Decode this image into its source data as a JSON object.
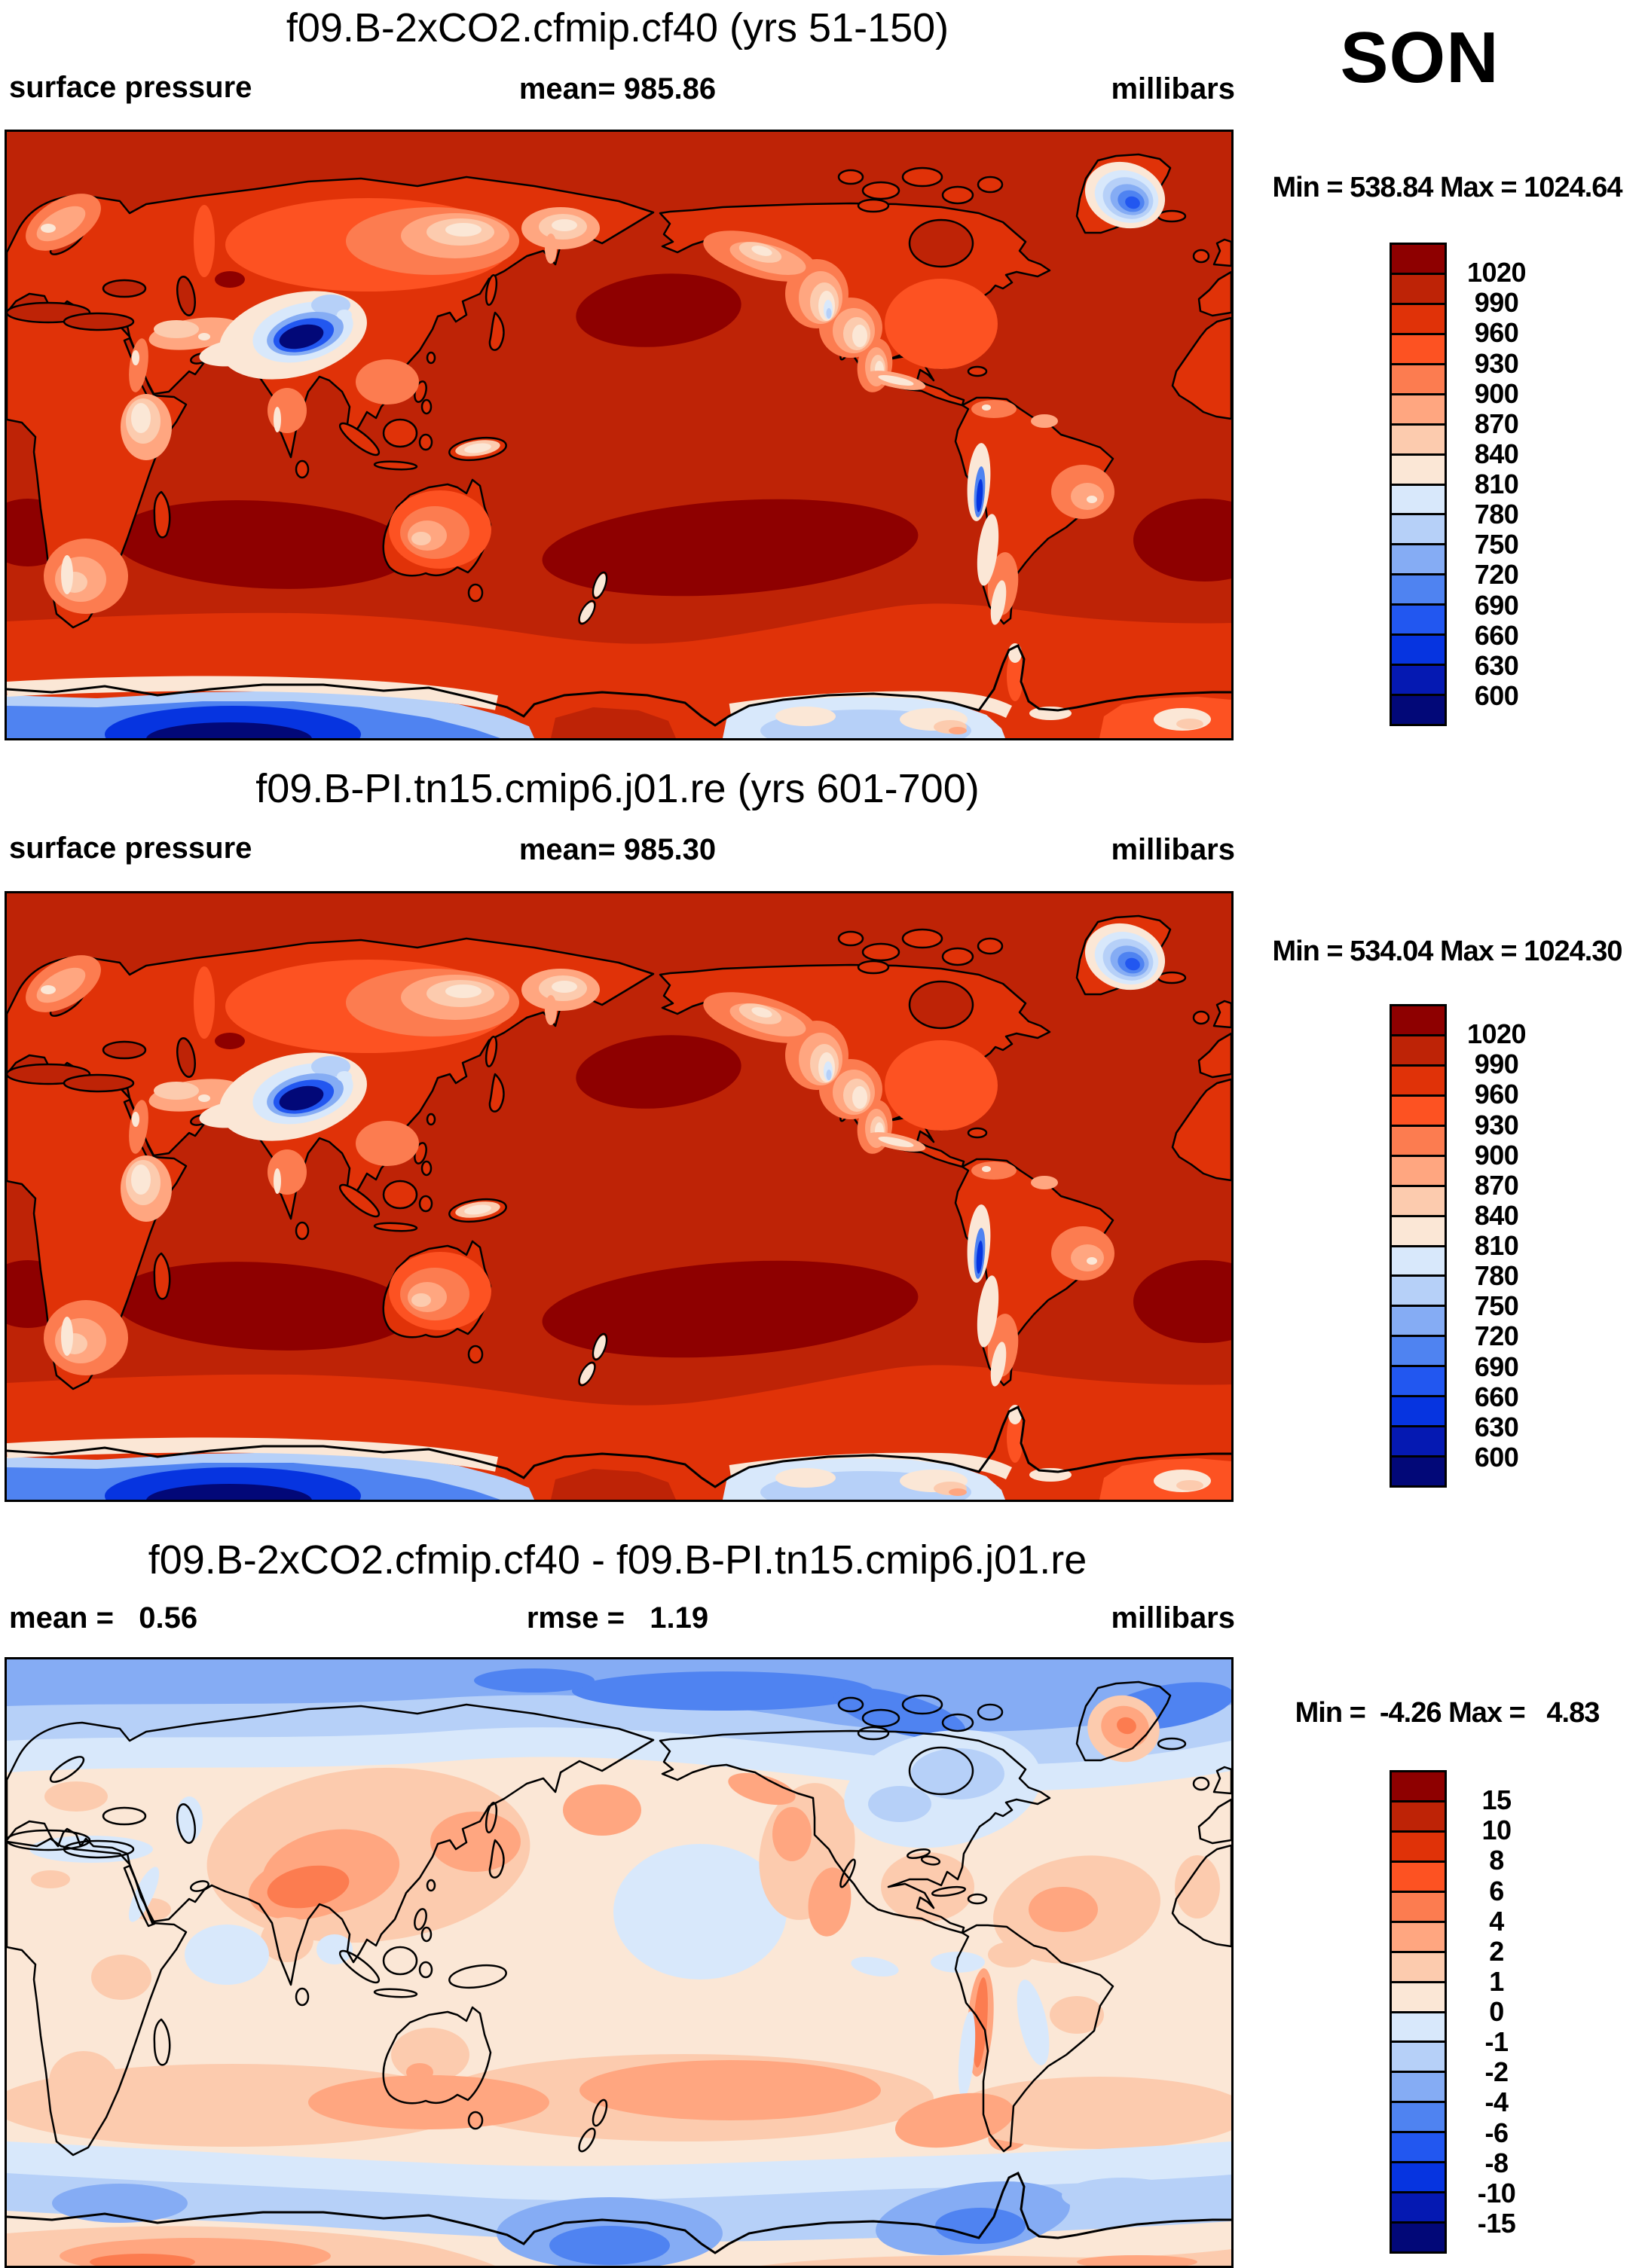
{
  "figure": {
    "season": "SON",
    "background": "#FFFFFF",
    "text_color": "#000000"
  },
  "palette": [
    "#8E0000",
    "#BE2306",
    "#E03208",
    "#FD5222",
    "#FC7C50",
    "#FFA680",
    "#FCCBAE",
    "#FBE7D6",
    "#D8E8FB",
    "#B6D0F8",
    "#85ACF4",
    "#4F83F1",
    "#2257F0",
    "#0634E0",
    "#0519B2",
    "#020878"
  ],
  "panels": [
    {
      "title": "f09.B-2xCO2.cfmip.cf40 (yrs 51-150)",
      "left_label": "surface pressure",
      "center_label": "mean= 985.86",
      "right_label": "millibars",
      "minmax": "Min = 538.84 Max = 1024.64",
      "colorbar_ticks": [
        "1020",
        "990",
        "960",
        "930",
        "900",
        "870",
        "840",
        "810",
        "780",
        "750",
        "720",
        "690",
        "660",
        "630",
        "600"
      ]
    },
    {
      "title": "f09.B-PI.tn15.cmip6.j01.re (yrs 601-700)",
      "left_label": "surface pressure",
      "center_label": "mean= 985.30",
      "right_label": "millibars",
      "minmax": "Min = 534.04 Max = 1024.30",
      "colorbar_ticks": [
        "1020",
        "990",
        "960",
        "930",
        "900",
        "870",
        "840",
        "810",
        "780",
        "750",
        "720",
        "690",
        "660",
        "630",
        "600"
      ]
    },
    {
      "title": "f09.B-2xCO2.cfmip.cf40 - f09.B-PI.tn15.cmip6.j01.re",
      "left_label": "mean =   0.56",
      "center_label": "rmse =   1.19",
      "right_label": "millibars",
      "minmax": "Min =  -4.26 Max =   4.83",
      "colorbar_ticks": [
        "15",
        "10",
        "8",
        "6",
        "4",
        "2",
        "1",
        "0",
        "-1",
        "-2",
        "-4",
        "-6",
        "-8",
        "-10",
        "-15"
      ]
    }
  ],
  "chart_data": [
    {
      "type": "heatmap",
      "panel": 1,
      "title": "f09.B-2xCO2.cfmip.cf40 (yrs 51-150)",
      "variable": "surface pressure",
      "season": "SON",
      "units": "millibars",
      "mean": 985.86,
      "min": 538.84,
      "max": 1024.64,
      "contour_levels": [
        600,
        630,
        660,
        690,
        720,
        750,
        780,
        810,
        840,
        870,
        900,
        930,
        960,
        990,
        1020
      ],
      "projection": "global cylindrical equidistant, lon 0-360E, lat 90N-90S",
      "legend_position": "right",
      "notes": "ocean ~990-1020 mb brick red; >1020 dark-red subtropical highs; Tibetan Plateau minimum deep navy; Greenland and Andes blue; Antarctica broadly 600-810 mb blues with red Ross sector"
    },
    {
      "type": "heatmap",
      "panel": 2,
      "title": "f09.B-PI.tn15.cmip6.j01.re (yrs 601-700)",
      "variable": "surface pressure",
      "season": "SON",
      "units": "millibars",
      "mean": 985.3,
      "min": 534.04,
      "max": 1024.3,
      "contour_levels": [
        600,
        630,
        660,
        690,
        720,
        750,
        780,
        810,
        840,
        870,
        900,
        930,
        960,
        990,
        1020
      ],
      "projection": "global cylindrical equidistant, lon 0-360E, lat 90N-90S",
      "legend_position": "right",
      "notes": "pattern nearly identical to panel 1"
    },
    {
      "type": "heatmap",
      "panel": 3,
      "title": "f09.B-2xCO2.cfmip.cf40 - f09.B-PI.tn15.cmip6.j01.re",
      "variable": "surface pressure difference",
      "season": "SON",
      "units": "millibars",
      "mean": 0.56,
      "rmse": 1.19,
      "min": -4.26,
      "max": 4.83,
      "contour_levels": [
        -15,
        -10,
        -8,
        -6,
        -4,
        -2,
        -1,
        0,
        1,
        2,
        4,
        6,
        8,
        10,
        15
      ],
      "projection": "global cylindrical equidistant, lon 0-360E, lat 90N-90S",
      "legend_position": "right",
      "notes": "Arctic negative (blue cap), continents weakly positive (pale peach/salmon), +1 to +2 ring ~50-60S, negative ring at Antarctic coast, positive East Antarctic interior"
    }
  ]
}
